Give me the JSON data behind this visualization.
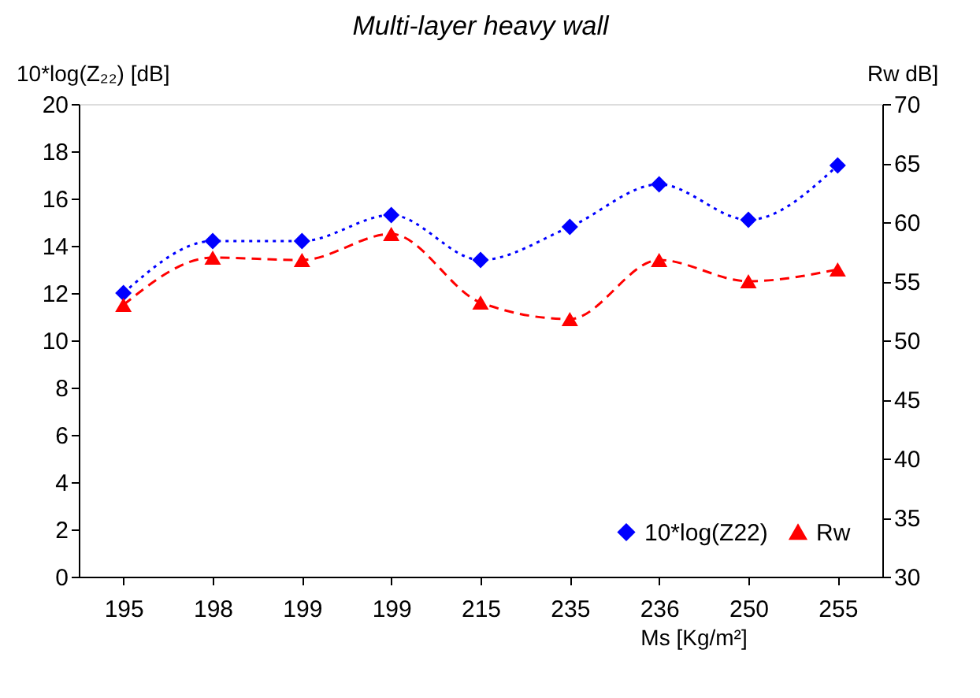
{
  "chart_data": {
    "type": "line",
    "title": "Multi-layer heavy wall",
    "xlabel": "Ms [Kg/m²]",
    "ylabel": "10*log(Z₂₂) [dB]",
    "y2label": "Rw dB]",
    "categories": [
      "195",
      "198",
      "199",
      "199",
      "215",
      "235",
      "236",
      "250",
      "255"
    ],
    "series": [
      {
        "name": "10*log(Z22)",
        "color": "#0000ff",
        "marker": "diamond",
        "line_style": "dotted",
        "values": [
          12.0,
          14.2,
          14.2,
          15.3,
          13.4,
          14.8,
          16.6,
          15.1,
          17.4
        ]
      },
      {
        "name": "Rw",
        "color": "#ff0000",
        "marker": "triangle",
        "line_style": "dashed",
        "axis": "y2",
        "values": [
          53,
          57,
          56.8,
          59,
          53.2,
          51.8,
          56.8,
          55,
          56
        ]
      }
    ],
    "ylim": [
      0,
      20
    ],
    "yticks": [
      0,
      2,
      4,
      6,
      8,
      10,
      12,
      14,
      16,
      18,
      20
    ],
    "y2lim": [
      30,
      70
    ],
    "y2ticks": [
      30,
      35,
      40,
      45,
      50,
      55,
      60,
      65,
      70
    ],
    "grid": false,
    "legend": "bottom right"
  }
}
